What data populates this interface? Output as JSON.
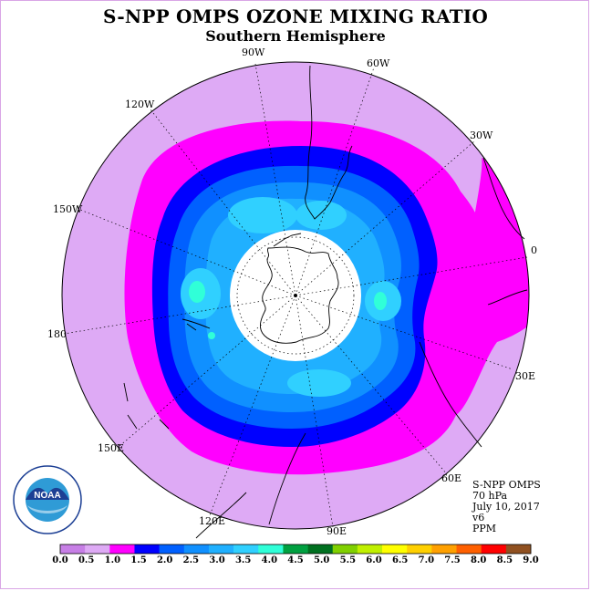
{
  "title": "S-NPP OMPS OZONE MIXING RATIO",
  "subtitle": "Southern Hemisphere",
  "longitude_labels": {
    "w90": "90W",
    "w60": "60W",
    "w30": "30W",
    "e0": "0",
    "e30": "30E",
    "e60": "60E",
    "e90": "90E",
    "e120": "120E",
    "e150": "150E",
    "lon180": "180",
    "w150": "150W",
    "w120": "120W"
  },
  "info": {
    "instrument": "S-NPP OMPS",
    "level": "70 hPa",
    "date": "July 10, 2017",
    "version": "v6",
    "units": "PPM"
  },
  "logo": {
    "text": "NOAA",
    "ring_text": "NATIONAL OCEANIC AND ATMOSPHERIC ADMINISTRATION · U.S. DEPARTMENT OF COMMERCE"
  },
  "colorbar": {
    "colors": [
      "#c77fe6",
      "#deaaf5",
      "#ff00ff",
      "#0000ff",
      "#0060ff",
      "#1090ff",
      "#20b0ff",
      "#30d0ff",
      "#30ffd8",
      "#00a040",
      "#007020",
      "#80d000",
      "#c0f000",
      "#ffff00",
      "#ffd000",
      "#ffa000",
      "#ff6000",
      "#ff0000",
      "#905020"
    ],
    "ticks": [
      "0.0",
      "0.5",
      "1.0",
      "1.5",
      "2.0",
      "2.5",
      "3.0",
      "3.5",
      "4.0",
      "4.5",
      "5.0",
      "5.5",
      "6.0",
      "6.5",
      "7.0",
      "7.5",
      "8.0",
      "8.5",
      "9.0"
    ]
  }
}
